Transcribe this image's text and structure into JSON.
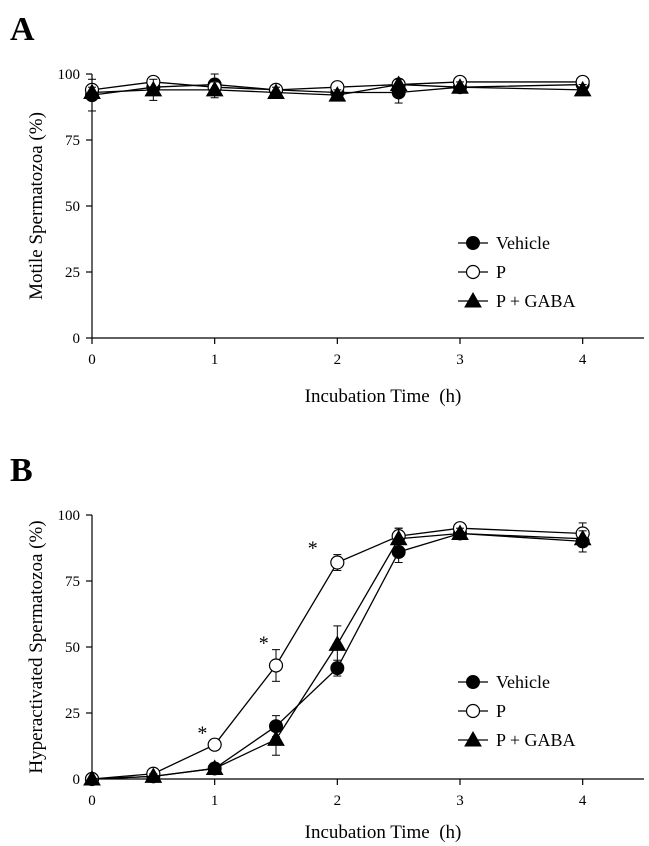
{
  "figure": {
    "panels": [
      "A",
      "B"
    ]
  },
  "chart_data": [
    {
      "type": "line",
      "panel_label": "A",
      "xlabel": "Incubation Time  (h)",
      "ylabel": "Motile Spermatozoa (%)",
      "xlim": [
        0,
        4.5
      ],
      "ylim": [
        0,
        100
      ],
      "x_ticks": [
        0,
        1,
        2,
        3,
        4
      ],
      "y_ticks": [
        0,
        25,
        50,
        75,
        100
      ],
      "grid": false,
      "legend_position": "bottom-right",
      "x": [
        0,
        0.5,
        1,
        1.5,
        2,
        2.5,
        3,
        4
      ],
      "series": [
        {
          "name": "Vehicle",
          "marker": "filled-circle",
          "values": [
            92,
            95,
            96,
            94,
            93,
            93,
            95,
            96
          ],
          "errors": [
            6,
            3,
            4,
            2,
            2,
            4,
            2,
            2
          ]
        },
        {
          "name": "P",
          "marker": "open-circle",
          "values": [
            94,
            97,
            95,
            94,
            95,
            96,
            97,
            97
          ],
          "errors": [
            2,
            2,
            3,
            2,
            2,
            2,
            2,
            2
          ]
        },
        {
          "name": "P + GABA",
          "marker": "filled-triangle",
          "values": [
            93,
            94,
            94,
            93,
            92,
            96,
            95,
            94
          ],
          "errors": [
            2,
            4,
            3,
            2,
            2,
            2,
            2,
            2
          ]
        }
      ],
      "annotations": []
    },
    {
      "type": "line",
      "panel_label": "B",
      "xlabel": "Incubation Time  (h)",
      "ylabel": "Hyperactivated Spermatozoa (%)",
      "xlim": [
        0,
        4.5
      ],
      "ylim": [
        0,
        100
      ],
      "x_ticks": [
        0,
        1,
        2,
        3,
        4
      ],
      "y_ticks": [
        0,
        25,
        50,
        75,
        100
      ],
      "grid": false,
      "legend_position": "bottom-right",
      "x": [
        0,
        0.5,
        1,
        1.5,
        2,
        2.5,
        3,
        4
      ],
      "series": [
        {
          "name": "Vehicle",
          "marker": "filled-circle",
          "values": [
            0,
            1,
            4,
            20,
            42,
            86,
            93,
            90
          ],
          "errors": [
            0,
            1,
            2,
            4,
            3,
            4,
            2,
            4
          ]
        },
        {
          "name": "P",
          "marker": "open-circle",
          "values": [
            0,
            2,
            13,
            43,
            82,
            92,
            95,
            93
          ],
          "errors": [
            0,
            1,
            2,
            6,
            3,
            3,
            2,
            4
          ]
        },
        {
          "name": "P + GABA",
          "marker": "filled-triangle",
          "values": [
            0,
            1,
            4,
            15,
            51,
            91,
            93,
            91
          ],
          "errors": [
            0,
            1,
            2,
            6,
            7,
            4,
            2,
            3
          ]
        }
      ],
      "annotations": [
        {
          "text": "*",
          "x": 0.9,
          "y": 18
        },
        {
          "text": "*",
          "x": 1.4,
          "y": 52
        },
        {
          "text": "*",
          "x": 1.8,
          "y": 88
        }
      ]
    }
  ]
}
